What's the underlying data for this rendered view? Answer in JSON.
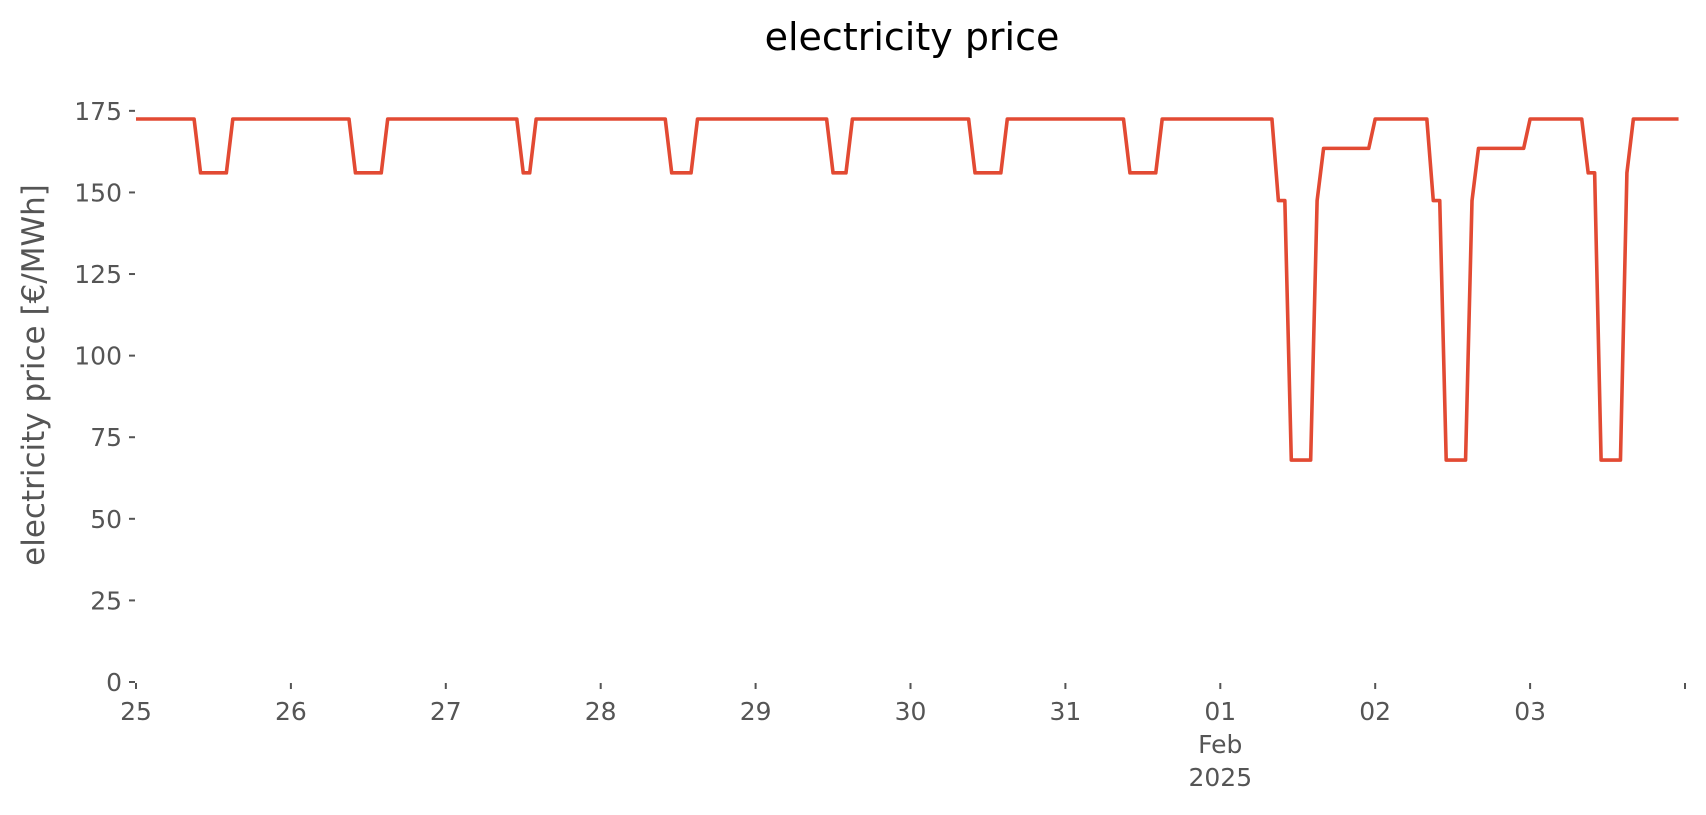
{
  "chart_data": {
    "type": "line",
    "title": "electricity price",
    "xlabel": "",
    "ylabel": "electricity price [€/MWh]",
    "ylim": [
      0,
      182
    ],
    "xlim": [
      "2025-01-25T00:00",
      "2025-02-03T24:00"
    ],
    "grid": false,
    "legend": "none",
    "y_ticks": [
      0,
      25,
      50,
      75,
      100,
      125,
      150,
      175
    ],
    "x_ticks": [
      {
        "at": "2025-01-25T00:00",
        "labels": [
          "25"
        ]
      },
      {
        "at": "2025-01-26T00:00",
        "labels": [
          "26"
        ]
      },
      {
        "at": "2025-01-27T00:00",
        "labels": [
          "27"
        ]
      },
      {
        "at": "2025-01-28T00:00",
        "labels": [
          "28"
        ]
      },
      {
        "at": "2025-01-29T00:00",
        "labels": [
          "29"
        ]
      },
      {
        "at": "2025-01-30T00:00",
        "labels": [
          "30"
        ]
      },
      {
        "at": "2025-01-31T00:00",
        "labels": [
          "31"
        ]
      },
      {
        "at": "2025-02-01T00:00",
        "labels": [
          "01",
          "Feb",
          "2025"
        ]
      },
      {
        "at": "2025-02-02T00:00",
        "labels": [
          "02"
        ]
      },
      {
        "at": "2025-02-03T00:00",
        "labels": [
          "03"
        ]
      },
      {
        "at": "2025-02-03T24:00",
        "labels": []
      }
    ],
    "series": [
      {
        "color": "#E24A33",
        "points": [
          [
            "2025-01-25T00:00",
            172.5
          ],
          [
            "2025-01-25T09:00",
            172.5
          ],
          [
            "2025-01-25T10:00",
            156
          ],
          [
            "2025-01-25T14:00",
            156
          ],
          [
            "2025-01-25T15:00",
            172.5
          ],
          [
            "2025-01-26T09:00",
            172.5
          ],
          [
            "2025-01-26T10:00",
            156
          ],
          [
            "2025-01-26T14:00",
            156
          ],
          [
            "2025-01-26T15:00",
            172.5
          ],
          [
            "2025-01-27T11:00",
            172.5
          ],
          [
            "2025-01-27T12:00",
            156
          ],
          [
            "2025-01-27T13:00",
            156
          ],
          [
            "2025-01-27T14:00",
            172.5
          ],
          [
            "2025-01-28T10:00",
            172.5
          ],
          [
            "2025-01-28T11:00",
            156
          ],
          [
            "2025-01-28T14:00",
            156
          ],
          [
            "2025-01-28T15:00",
            172.5
          ],
          [
            "2025-01-29T11:00",
            172.5
          ],
          [
            "2025-01-29T12:00",
            156
          ],
          [
            "2025-01-29T14:00",
            156
          ],
          [
            "2025-01-29T15:00",
            172.5
          ],
          [
            "2025-01-30T09:00",
            172.5
          ],
          [
            "2025-01-30T10:00",
            156
          ],
          [
            "2025-01-30T14:00",
            156
          ],
          [
            "2025-01-30T15:00",
            172.5
          ],
          [
            "2025-01-31T09:00",
            172.5
          ],
          [
            "2025-01-31T10:00",
            156
          ],
          [
            "2025-01-31T14:00",
            156
          ],
          [
            "2025-01-31T15:00",
            172.5
          ],
          [
            "2025-02-01T08:00",
            172.5
          ],
          [
            "2025-02-01T09:00",
            147.5
          ],
          [
            "2025-02-01T10:00",
            147.5
          ],
          [
            "2025-02-01T11:00",
            68
          ],
          [
            "2025-02-01T14:00",
            68
          ],
          [
            "2025-02-01T15:00",
            147.5
          ],
          [
            "2025-02-01T16:00",
            163.5
          ],
          [
            "2025-02-01T23:00",
            163.5
          ],
          [
            "2025-02-02T00:00",
            172.5
          ],
          [
            "2025-02-02T08:00",
            172.5
          ],
          [
            "2025-02-02T09:00",
            147.5
          ],
          [
            "2025-02-02T10:00",
            147.5
          ],
          [
            "2025-02-02T11:00",
            68
          ],
          [
            "2025-02-02T14:00",
            68
          ],
          [
            "2025-02-02T15:00",
            147.5
          ],
          [
            "2025-02-02T16:00",
            163.5
          ],
          [
            "2025-02-02T23:00",
            163.5
          ],
          [
            "2025-02-03T00:00",
            172.5
          ],
          [
            "2025-02-03T08:00",
            172.5
          ],
          [
            "2025-02-03T09:00",
            156
          ],
          [
            "2025-02-03T10:00",
            156
          ],
          [
            "2025-02-03T11:00",
            68
          ],
          [
            "2025-02-03T14:00",
            68
          ],
          [
            "2025-02-03T15:00",
            156
          ],
          [
            "2025-02-03T16:00",
            172.5
          ],
          [
            "2025-02-03T23:00",
            172.5
          ]
        ]
      }
    ]
  }
}
